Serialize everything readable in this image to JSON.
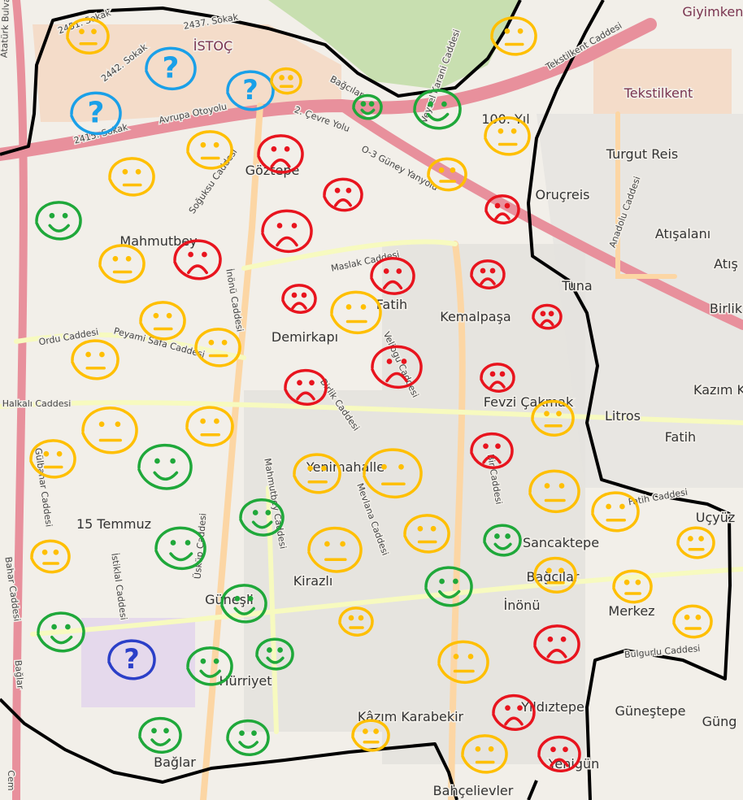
{
  "map": {
    "colors": {
      "background": "#f2efe9",
      "motorway": "#e8909c",
      "primary": "#fcd6a4",
      "secondary": "#f7fabf",
      "boundary": "#000000",
      "neutral": "#ffbf00",
      "sad": "#e8141e",
      "happy": "#1fa83a",
      "unknown": "#1aa0e8",
      "unknown_dark": "#2b3fc8"
    },
    "places": [
      "Göztepe",
      "Mahmutbey",
      "Fatih",
      "Kemalpaşa",
      "Demirkapı",
      "Fevzi Çakmak",
      "Yenimahalle",
      "15 Temmuz",
      "Sancaktepe",
      "Bağcılar",
      "İnönü",
      "Merkez",
      "Kirazlı",
      "Güneşli",
      "Hürriyet",
      "Kâzım Karabekir",
      "Yıldıztepe",
      "Bağlar",
      "Yenigün",
      "Güneştepe",
      "Güng",
      "Oruçreis",
      "Turgut Reis",
      "Atışalanı",
      "Tuna",
      "Birlik",
      "Kazım K",
      "Fatih",
      "Litros",
      "Tekstilkent",
      "Giyimkent",
      "İSTOÇ",
      "100. Yıl",
      "Uçyüz",
      "Bahçelievler",
      "Atış"
    ],
    "streets": [
      "2451. Sokak",
      "2437. Sokak",
      "2442. Sokak",
      "2415. Sokak",
      "Avrupa Otoyolu",
      "2. Çevre Yolu",
      "O-3 Güney Yanyolu",
      "Bağcılar",
      "Veysel Karani Caddesi",
      "Tekstilkent Caddesi",
      "Soğuksu Caddesi",
      "Maslak Caddesi",
      "İnönü Caddesi",
      "Ordu Caddesi",
      "Peyami Safa Caddesi",
      "Veliogu Caddesi",
      "Halkalı Caddesi",
      "Birlik Caddesi",
      "Gülbahar Caddesi",
      "İstiklal Caddesi",
      "Mahmutbey Caddesi",
      "Mevlana Caddesi",
      "Üsküp Caddesi",
      "Bahar Caddesi",
      "Bağlar",
      "Anadolu Caddesi",
      "Fatih Caddesi",
      "Bulgurlu Caddesi",
      "Atatürk Bulvarı",
      "Bir Caddesi",
      "Cem"
    ],
    "faces": [
      "neutral",
      "unknown",
      "unknown",
      "unknown",
      "neutral",
      "happy",
      "happy",
      "neutral",
      "neutral",
      "neutral",
      "sad",
      "neutral",
      "neutral",
      "sad",
      "sad",
      "happy",
      "sad",
      "neutral",
      "sad",
      "sad",
      "sad",
      "sad",
      "neutral",
      "sad",
      "neutral",
      "neutral",
      "neutral",
      "sad",
      "sad",
      "sad",
      "neutral",
      "neutral",
      "neutral",
      "neutral",
      "happy",
      "sad",
      "neutral",
      "neutral",
      "neutral",
      "neutral",
      "happy",
      "neutral",
      "happy",
      "neutral",
      "happy",
      "neutral",
      "neutral",
      "neutral",
      "happy",
      "neutral",
      "happy",
      "neutral",
      "neutral",
      "happy",
      "sad",
      "unknown_dark",
      "happy",
      "happy",
      "neutral",
      "sad",
      "happy",
      "happy",
      "neutral",
      "neutral",
      "sad"
    ],
    "question_mark": "?"
  }
}
